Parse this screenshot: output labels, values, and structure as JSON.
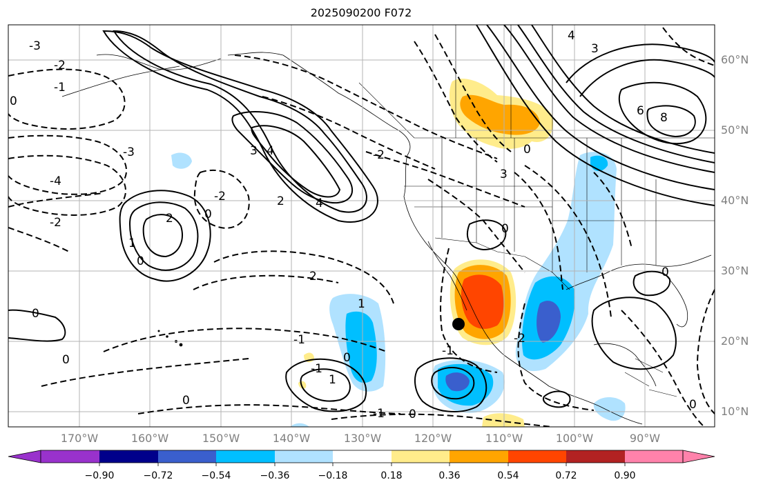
{
  "title": "2025090200 F072",
  "lat_labels": [
    "60°N",
    "50°N",
    "40°N",
    "30°N",
    "20°N",
    "10°N"
  ],
  "lon_labels": [
    "170°W",
    "160°W",
    "150°W",
    "140°W",
    "130°W",
    "120°W",
    "110°W",
    "100°W",
    "90°W"
  ],
  "contour_labels": {
    "l1": "-3",
    "l2": "-2",
    "l3": "-1",
    "l4": "0",
    "l5": "-3",
    "l6": "-4",
    "l7": "-2",
    "l8": "2",
    "l9": "1",
    "l10": "0",
    "l11": "3",
    "l12": "4",
    "l13": "4",
    "l14": "2",
    "l15": "-2",
    "l16": "0",
    "l17": "2",
    "l18": "-1",
    "l19": "0",
    "l20": "0",
    "l21": "1",
    "l22": "0",
    "l23": "-1",
    "l24": "0",
    "l25": "1",
    "l26": "-1",
    "l27": "0",
    "l28": "4",
    "l29": "3",
    "l30": "6",
    "l31": "8",
    "l32": "0",
    "l33": "3",
    "l34": "0",
    "l35": "-1",
    "l36": "-2",
    "l37": "0",
    "l38": "-2",
    "l39": "0"
  },
  "colorbar": {
    "colors": [
      "#9932cc",
      "#00008b",
      "#3a5fcd",
      "#00bfff",
      "#b0e2ff",
      "#ffffff",
      "#ffec8b",
      "#ffa500",
      "#ff4500",
      "#b22222",
      "#ff82ab"
    ],
    "ticks": [
      "−0.90",
      "−0.72",
      "−0.54",
      "−0.36",
      "−0.18",
      "0.18",
      "0.36",
      "0.54",
      "0.72",
      "0.90"
    ]
  },
  "colors": {
    "grid": "#b3b3b3",
    "label_gray": "#7f7f7f",
    "marker": "#000000"
  }
}
